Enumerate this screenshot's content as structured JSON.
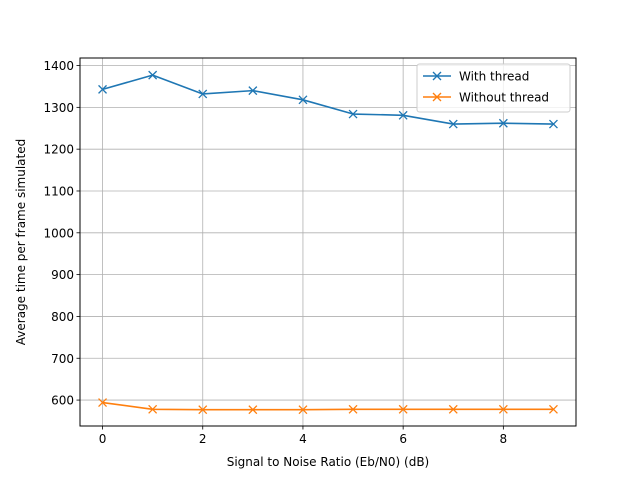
{
  "chart_data": {
    "type": "line",
    "title": "",
    "xlabel": "Signal to Noise Ratio (Eb/N0) (dB)",
    "ylabel": "Average time per frame simulated",
    "x": [
      0,
      1,
      2,
      3,
      4,
      5,
      6,
      7,
      8,
      9
    ],
    "xlim": [
      -0.45,
      9.45
    ],
    "ylim": [
      538,
      1418
    ],
    "xticks": [
      0,
      2,
      4,
      6,
      8
    ],
    "yticks": [
      600,
      700,
      800,
      900,
      1000,
      1100,
      1200,
      1300,
      1400
    ],
    "grid": true,
    "legend_position": "upper right",
    "marker": "x",
    "series": [
      {
        "name": "With thread",
        "color": "#1f77b4",
        "values": [
          1343,
          1377,
          1332,
          1340,
          1318,
          1284,
          1281,
          1260,
          1262,
          1260
        ]
      },
      {
        "name": "Without thread",
        "color": "#ff7f0e",
        "values": [
          594,
          578,
          577,
          577,
          577,
          578,
          578,
          578,
          578,
          578
        ]
      }
    ]
  }
}
